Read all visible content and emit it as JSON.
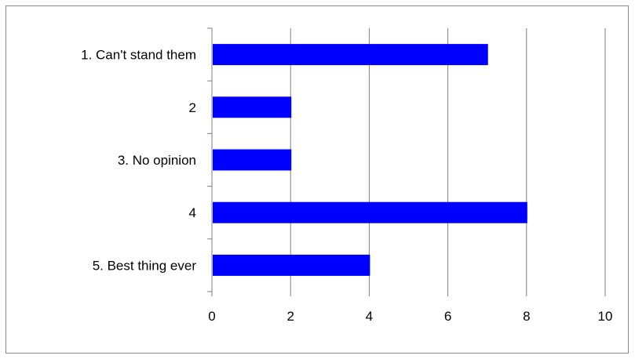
{
  "chart_data": {
    "type": "bar",
    "orientation": "horizontal",
    "categories": [
      "1. Can't stand them",
      "2",
      "3. No opinion",
      "4",
      "5. Best thing ever"
    ],
    "values": [
      7,
      2,
      2,
      8,
      4
    ],
    "xlim": [
      0,
      10
    ],
    "x_ticks": [
      "0",
      "2",
      "4",
      "6",
      "8",
      "10"
    ],
    "grid": "vertical",
    "bar_color": "#0000FF",
    "title": "",
    "xlabel": "",
    "ylabel": ""
  }
}
